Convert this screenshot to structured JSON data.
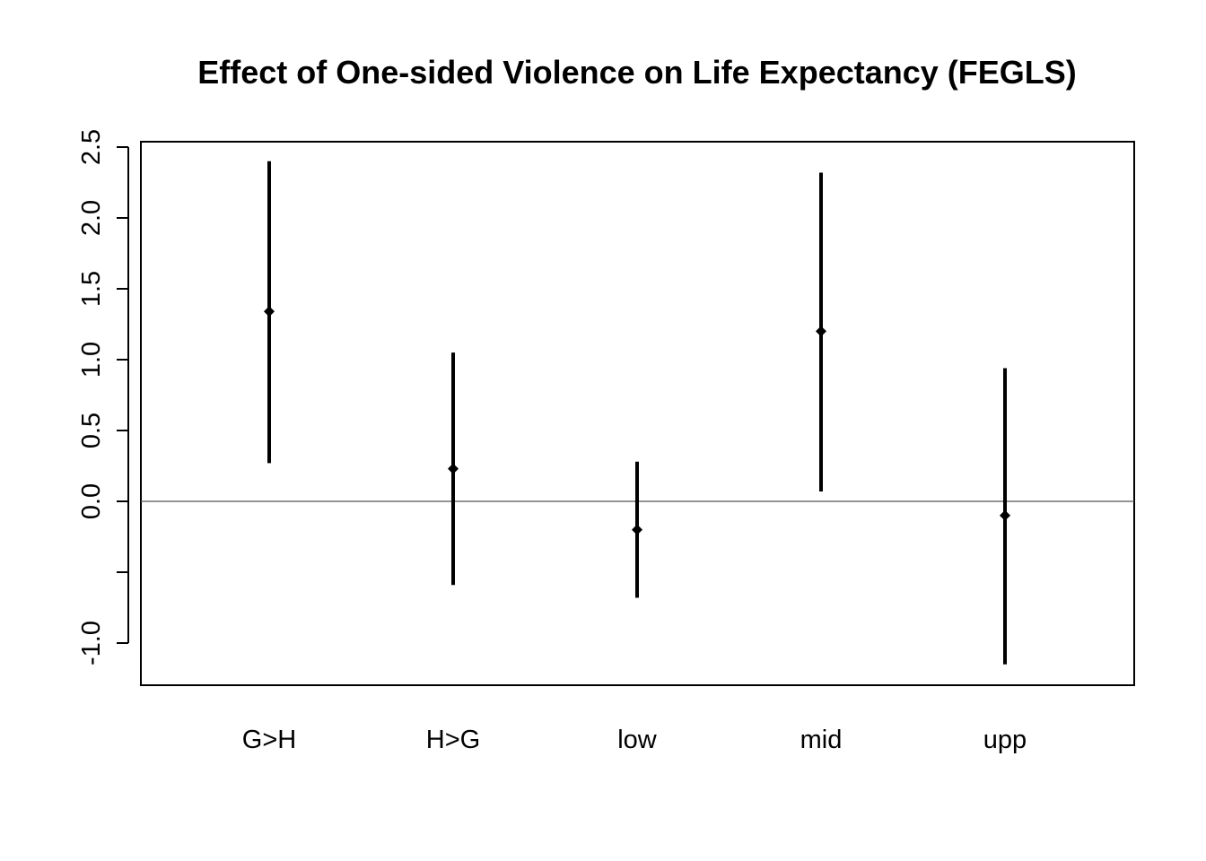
{
  "chart_data": {
    "type": "errorbar",
    "title": "Effect of One-sided Violence on Life Expectancy (FEGLS)",
    "xlabel": "",
    "ylabel": "",
    "categories": [
      "G>H",
      "H>G",
      "low",
      "mid",
      "upp"
    ],
    "estimates": [
      1.34,
      0.23,
      -0.2,
      1.2,
      -0.1
    ],
    "lower": [
      0.27,
      -0.59,
      -0.68,
      0.07,
      -1.15
    ],
    "upper": [
      2.4,
      1.05,
      0.28,
      2.32,
      0.94
    ],
    "ylim": [
      -1.3,
      2.55
    ],
    "yticks": [
      -1.0,
      -0.5,
      0.0,
      0.5,
      1.0,
      1.5,
      2.0,
      2.5
    ],
    "ytick_labels": [
      "-1.0",
      "",
      "0.0",
      "0.5",
      "1.0",
      "1.5",
      "2.0",
      "2.5"
    ],
    "reference_line": 0,
    "grid": false,
    "legend": "none"
  }
}
